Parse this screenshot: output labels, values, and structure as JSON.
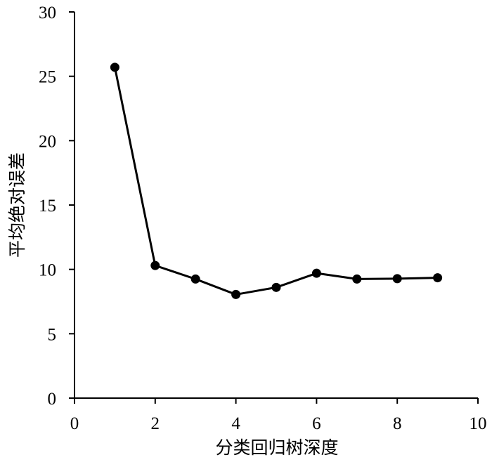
{
  "chart_data": {
    "type": "line",
    "title": "",
    "xlabel": "分类回归树深度",
    "ylabel": "平均绝对误差",
    "xlim": [
      0,
      10
    ],
    "ylim": [
      0,
      30
    ],
    "x_ticks": [
      0,
      2,
      4,
      6,
      8,
      10
    ],
    "y_ticks": [
      0,
      5,
      10,
      15,
      20,
      25,
      30
    ],
    "grid": false,
    "legend": "none",
    "colors": {
      "line": "#000000",
      "marker": "#000000",
      "axis": "#000000"
    },
    "series": [
      {
        "x": [
          1,
          2,
          3,
          4,
          5,
          6,
          7,
          8,
          9
        ],
        "values": [
          25.7,
          10.3,
          9.25,
          8.05,
          8.6,
          9.7,
          9.25,
          9.28,
          9.35
        ]
      }
    ]
  }
}
